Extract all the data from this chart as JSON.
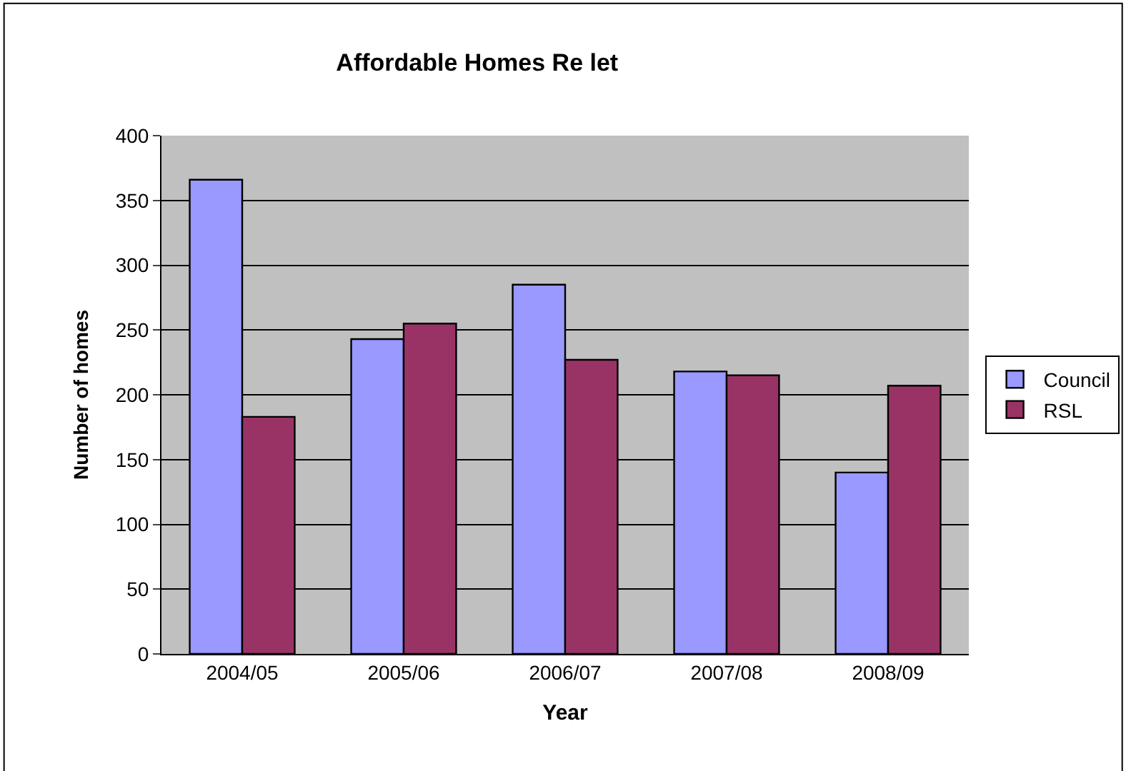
{
  "chart_data": {
    "type": "bar",
    "title": "Affordable Homes Re let",
    "xlabel": "Year",
    "ylabel": "Number of homes",
    "categories": [
      "2004/05",
      "2005/06",
      "2006/07",
      "2007/08",
      "2008/09"
    ],
    "series": [
      {
        "name": "Council",
        "color": "#9999ff",
        "values": [
          366,
          243,
          285,
          218,
          140
        ]
      },
      {
        "name": "RSL",
        "color": "#993366",
        "values": [
          183,
          255,
          227,
          215,
          207
        ]
      }
    ],
    "ylim": [
      0,
      400
    ],
    "yticks": [
      0,
      50,
      100,
      150,
      200,
      250,
      300,
      350,
      400
    ],
    "grid": "y",
    "legend": "right"
  }
}
